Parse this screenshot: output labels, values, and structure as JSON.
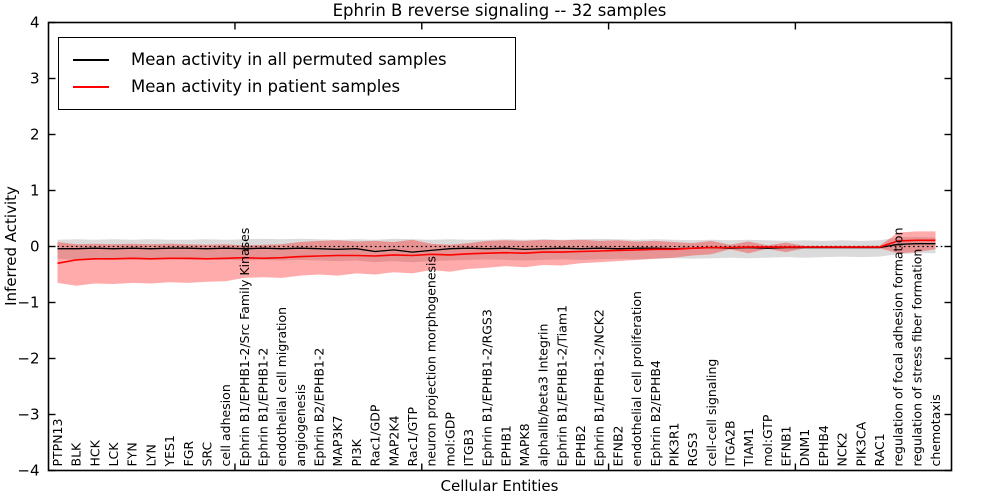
{
  "title": "Ephrin B reverse signaling -- 32 samples",
  "axes": {
    "ylabel": "Inferred Activity",
    "xlabel": "Cellular Entities"
  },
  "legend": {
    "items": [
      {
        "label": "Mean activity in all permuted samples",
        "color": "#000000"
      },
      {
        "label": "Mean activity in patient samples",
        "color": "#ff0000"
      }
    ]
  },
  "colors": {
    "permuted_line": "#000000",
    "patient_line": "#ff0000",
    "permuted_band": "#000000",
    "patient_band": "#ff0000",
    "zero_line": "#000000"
  },
  "chart_data": {
    "type": "line",
    "title": "Ephrin B reverse signaling -- 32 samples",
    "xlabel": "Cellular Entities",
    "ylabel": "Inferred Activity",
    "ylim": [
      -4,
      4
    ],
    "yticks": [
      4,
      3,
      2,
      1,
      0,
      -1,
      -2,
      -3,
      -4
    ],
    "grid": false,
    "legend_position": "upper left",
    "zero_reference_line": 0,
    "categories": [
      "PTPN13",
      "BLK",
      "HCK",
      "LCK",
      "FYN",
      "LYN",
      "YES1",
      "FGR",
      "SRC",
      "cell adhesion",
      "Ephrin B1/EPHB1-2/Src Family Kinases",
      "Ephrin B1/EPHB1-2",
      "endothelial cell migration",
      "angiogenesis",
      "Ephrin B2/EPHB1-2",
      "MAP3K7",
      "PI3K",
      "Rac1/GDP",
      "MAP2K4",
      "Rac1/GTP",
      "neuron projection morphogenesis",
      "mol:GDP",
      "ITGB3",
      "Ephrin B1/EPHB1-2/RGS3",
      "EPHB1",
      "MAPK8",
      "alphaIIb/beta3 Integrin",
      "Ephrin B1/EPHB1-2/Tiam1",
      "EPHB2",
      "Ephrin B1/EPHB1-2/NCK2",
      "EFNB2",
      "endothelial cell proliferation",
      "Ephrin B2/EPHB4",
      "PIK3R1",
      "RGS3",
      "cell-cell signaling",
      "ITGA2B",
      "TIAM1",
      "mol:GTP",
      "EFNB1",
      "DNM1",
      "EPHB4",
      "NCK2",
      "PIK3CA",
      "RAC1",
      "regulation of focal adhesion formation",
      "regulation of stress fiber formation",
      "chemotaxis"
    ],
    "series": [
      {
        "name": "Mean activity in all permuted samples",
        "color": "#000000",
        "style": "solid",
        "width": 1.3,
        "values": [
          -0.04,
          -0.04,
          -0.03,
          -0.04,
          -0.03,
          -0.04,
          -0.03,
          -0.03,
          -0.04,
          -0.03,
          -0.04,
          -0.03,
          -0.04,
          -0.03,
          -0.04,
          -0.05,
          -0.04,
          -0.09,
          -0.06,
          -0.1,
          -0.07,
          -0.04,
          -0.03,
          -0.04,
          -0.03,
          -0.05,
          -0.04,
          -0.03,
          -0.04,
          -0.03,
          -0.04,
          -0.03,
          -0.03,
          -0.04,
          -0.03,
          -0.02,
          -0.03,
          -0.02,
          -0.03,
          -0.02,
          -0.02,
          -0.02,
          -0.02,
          -0.02,
          -0.02,
          0.04,
          0.05,
          0.05
        ]
      },
      {
        "name": "Mean activity in patient samples",
        "color": "#ff0000",
        "style": "solid",
        "width": 1.6,
        "values": [
          -0.3,
          -0.24,
          -0.22,
          -0.22,
          -0.21,
          -0.22,
          -0.21,
          -0.21,
          -0.22,
          -0.21,
          -0.2,
          -0.21,
          -0.2,
          -0.18,
          -0.17,
          -0.16,
          -0.16,
          -0.17,
          -0.15,
          -0.16,
          -0.14,
          -0.15,
          -0.13,
          -0.12,
          -0.11,
          -0.12,
          -0.1,
          -0.1,
          -0.09,
          -0.08,
          -0.07,
          -0.06,
          -0.05,
          -0.05,
          -0.03,
          -0.02,
          -0.02,
          -0.01,
          -0.01,
          -0.01,
          -0.01,
          -0.01,
          -0.01,
          -0.01,
          -0.01,
          0.1,
          0.11,
          0.11
        ]
      }
    ],
    "bands": [
      {
        "name": "permuted-samples-range",
        "color": "#000000",
        "opacity": 0.14,
        "upper": [
          0.12,
          0.13,
          0.12,
          0.13,
          0.12,
          0.13,
          0.12,
          0.12,
          0.13,
          0.12,
          0.13,
          0.14,
          0.13,
          0.14,
          0.13,
          0.12,
          0.13,
          0.12,
          0.14,
          0.13,
          0.12,
          0.13,
          0.12,
          0.12,
          0.13,
          0.12,
          0.13,
          0.12,
          0.13,
          0.14,
          0.13,
          0.12,
          0.13,
          0.12,
          0.11,
          0.12,
          0.11,
          0.12,
          0.11,
          0.1,
          0.11,
          0.1,
          0.11,
          0.1,
          0.11,
          0.16,
          0.17,
          0.16
        ],
        "lower": [
          -0.22,
          -0.24,
          -0.23,
          -0.24,
          -0.23,
          -0.24,
          -0.23,
          -0.24,
          -0.23,
          -0.24,
          -0.25,
          -0.24,
          -0.25,
          -0.24,
          -0.25,
          -0.26,
          -0.25,
          -0.28,
          -0.26,
          -0.28,
          -0.26,
          -0.25,
          -0.24,
          -0.23,
          -0.24,
          -0.25,
          -0.24,
          -0.23,
          -0.24,
          -0.23,
          -0.22,
          -0.23,
          -0.22,
          -0.21,
          -0.22,
          -0.21,
          -0.2,
          -0.21,
          -0.2,
          -0.19,
          -0.2,
          -0.19,
          -0.18,
          -0.19,
          -0.18,
          -0.14,
          -0.12,
          -0.12
        ]
      },
      {
        "name": "patient-samples-range",
        "color": "#ff0000",
        "opacity": 0.33,
        "upper": [
          0.08,
          0.04,
          0.05,
          0.04,
          0.05,
          0.04,
          0.05,
          0.04,
          0.03,
          0.04,
          0.02,
          0.03,
          0.04,
          0.08,
          0.1,
          0.11,
          0.09,
          0.1,
          0.08,
          0.12,
          0.05,
          0.03,
          0.06,
          0.1,
          0.11,
          0.1,
          0.12,
          0.11,
          0.12,
          0.1,
          0.11,
          0.09,
          0.1,
          0.08,
          0.06,
          0.1,
          0.03,
          0.09,
          0.02,
          0.07,
          0.01,
          0.01,
          0.01,
          0.01,
          0.01,
          0.25,
          0.27,
          0.27
        ],
        "lower": [
          -0.65,
          -0.7,
          -0.66,
          -0.67,
          -0.65,
          -0.66,
          -0.64,
          -0.65,
          -0.63,
          -0.62,
          -0.56,
          -0.55,
          -0.56,
          -0.52,
          -0.5,
          -0.52,
          -0.48,
          -0.5,
          -0.46,
          -0.48,
          -0.42,
          -0.45,
          -0.4,
          -0.38,
          -0.35,
          -0.37,
          -0.33,
          -0.34,
          -0.3,
          -0.28,
          -0.26,
          -0.24,
          -0.22,
          -0.2,
          -0.16,
          -0.14,
          -0.05,
          -0.12,
          -0.04,
          -0.1,
          -0.03,
          -0.03,
          -0.03,
          -0.03,
          -0.03,
          -0.12,
          -0.1,
          -0.05
        ]
      }
    ]
  }
}
